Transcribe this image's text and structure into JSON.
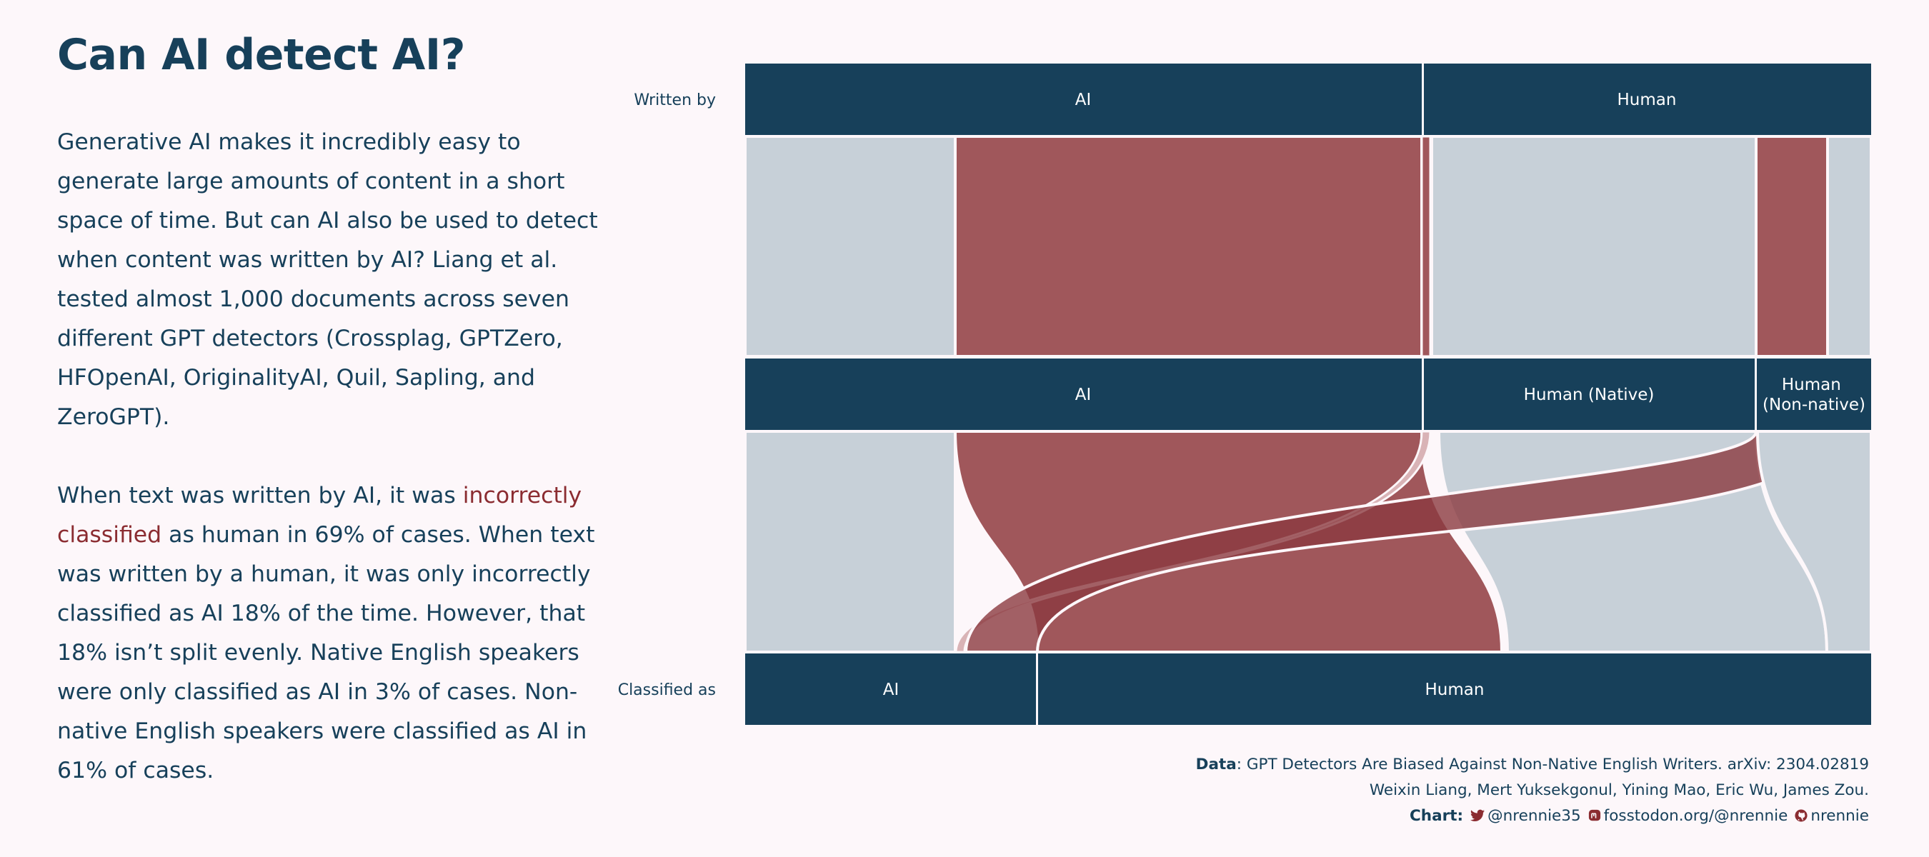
{
  "title": "Can AI detect AI?",
  "paragraph1": "Generative AI makes it incredibly easy to generate large amounts of content in a short space of time. But can AI also be used to detect when content was written by AI? Liang et al. tested almost 1,000 documents across seven different GPT detectors (Crossplag, GPTZero, HFOpenAI, OriginalityAI, Quil, Sapling, and ZeroGPT).",
  "paragraph2": {
    "before": "When text was written by AI, it was ",
    "highlight": "incorrectly classified",
    "after": " as human in 69% of cases. When text was written by a human, it was only incorrectly classified as AI 18% of the time. However, that 18% isn’t split evenly. Native English speakers were only classified as AI in 3% of cases. Non-native English speakers were classified as AI in 61% of cases."
  },
  "colors": {
    "bar": "#17405a",
    "misclassified": "#a0575b",
    "correct": "#c7d0d8",
    "accent": "#8b2c31",
    "background": "#fdf7fa"
  },
  "chart_data": {
    "type": "alluvial",
    "axes": [
      {
        "label": "Written by",
        "categories": [
          "AI",
          "Human"
        ]
      },
      {
        "label": "",
        "categories": [
          "AI",
          "Human (Native)",
          "Human (Non-native)"
        ]
      },
      {
        "label": "Classified as",
        "categories": [
          "AI",
          "Human"
        ]
      }
    ],
    "rates": {
      "ai_classified_as_human_pct": 69,
      "human_classified_as_ai_pct": 18,
      "native_classified_as_ai_pct": 3,
      "non_native_classified_as_ai_pct": 61
    }
  },
  "source": {
    "data_key": "Data",
    "data_text": ": GPT Detectors Are Biased Against Non-Native English Writers. arXiv: 2304.02819",
    "authors": "Weixin Liang, Mert Yuksekgonul, Yining Mao, Eric Wu, James Zou.",
    "chart_key": "Chart",
    "twitter": "@nrennie35",
    "mastodon": "fosstodon.org/@nrennie",
    "github": "nrennie",
    "icons": [
      "twitter-icon",
      "mastodon-icon",
      "github-icon"
    ]
  }
}
